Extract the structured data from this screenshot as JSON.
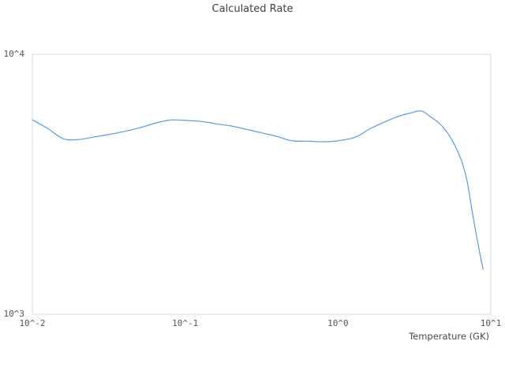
{
  "page": {
    "background": "#ffffff"
  },
  "chart_data": {
    "type": "line",
    "title": "Calculated Rate",
    "xlabel": "Temperature (GK)",
    "ylabel": "",
    "x_scale": "log",
    "y_scale": "log",
    "xlim": [
      0.01,
      10
    ],
    "ylim": [
      1000,
      10000
    ],
    "grid": false,
    "legend_visible": false,
    "x_ticks": [
      {
        "value": 0.01,
        "label": "10^-2"
      },
      {
        "value": 0.1,
        "label": "10^-1"
      },
      {
        "value": 1,
        "label": "10^0"
      },
      {
        "value": 10,
        "label": "10^1"
      }
    ],
    "y_ticks": [
      {
        "value": 1000,
        "label": "10^3"
      },
      {
        "value": 10000,
        "label": "10^4"
      }
    ],
    "colors": {
      "line": "#5a9bdc",
      "plot_border": "#d9d9d9",
      "title_text": "#3f3f3f",
      "tick_text": "#545454",
      "axis_label_text": "#4a4a4a"
    },
    "series": [
      {
        "name": "Calculated Rate",
        "x": [
          0.01,
          0.0125,
          0.016,
          0.02,
          0.025,
          0.032,
          0.04,
          0.05,
          0.065,
          0.08,
          0.1,
          0.13,
          0.16,
          0.2,
          0.25,
          0.32,
          0.4,
          0.5,
          0.65,
          0.8,
          1.0,
          1.3,
          1.6,
          2.0,
          2.5,
          3.0,
          3.5,
          4.0,
          4.5,
          5.0,
          5.5,
          6.0,
          6.5,
          7.0,
          7.5,
          8.0,
          8.5,
          8.9
        ],
        "y": [
          5600,
          5200,
          4730,
          4700,
          4800,
          4920,
          5050,
          5210,
          5450,
          5590,
          5570,
          5510,
          5400,
          5300,
          5150,
          4980,
          4830,
          4650,
          4630,
          4610,
          4650,
          4800,
          5150,
          5480,
          5780,
          5950,
          6060,
          5770,
          5490,
          5150,
          4740,
          4300,
          3830,
          3250,
          2550,
          2050,
          1700,
          1490
        ]
      }
    ]
  }
}
